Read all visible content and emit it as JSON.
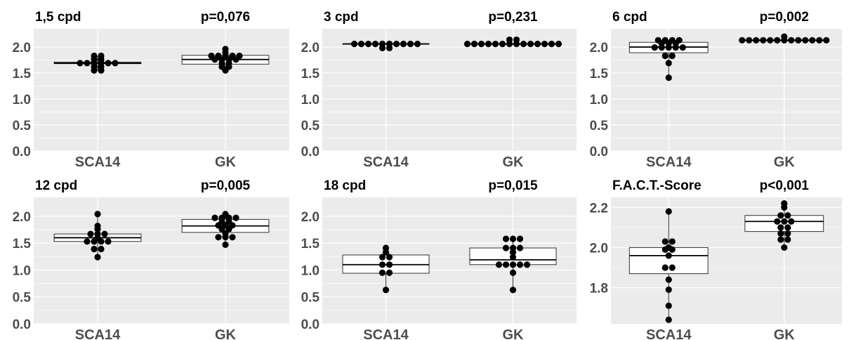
{
  "colors": {
    "panel_bg": "#ebebeb",
    "grid": "#ffffff",
    "point": "#000000",
    "box_fill": "#ffffff",
    "box_stroke": "#333333",
    "tick_text": "#4d4d4d",
    "title_text": "#000000"
  },
  "chart_data": [
    {
      "type": "boxplot",
      "title": "1,5 cpd",
      "p_value": "p=0,076",
      "categories": [
        "SCA14",
        "GK"
      ],
      "ylim": [
        0,
        2.35
      ],
      "yticks": [
        0.0,
        0.5,
        1.0,
        1.5,
        2.0
      ],
      "ytick_labels": [
        "0.0",
        "0.5",
        "1.0",
        "1.5",
        "2.0"
      ],
      "series": [
        {
          "category": "SCA14",
          "box": {
            "q1": 1.68,
            "median": 1.69,
            "q3": 1.71,
            "whisker_low": 1.55,
            "whisker_high": 1.83
          },
          "points": [
            1.55,
            1.55,
            1.62,
            1.62,
            1.69,
            1.69,
            1.69,
            1.69,
            1.69,
            1.69,
            1.76,
            1.76,
            1.83,
            1.83
          ]
        },
        {
          "category": "GK",
          "box": {
            "q1": 1.67,
            "median": 1.76,
            "q3": 1.84,
            "whisker_low": 1.55,
            "whisker_high": 1.96
          },
          "points": [
            1.55,
            1.62,
            1.62,
            1.69,
            1.69,
            1.76,
            1.76,
            1.76,
            1.76,
            1.83,
            1.83,
            1.83,
            1.83,
            1.83,
            1.89,
            1.96
          ]
        }
      ]
    },
    {
      "type": "boxplot",
      "title": "3 cpd",
      "p_value": "p=0,231",
      "categories": [
        "SCA14",
        "GK"
      ],
      "ylim": [
        0,
        2.35
      ],
      "yticks": [
        0.0,
        0.5,
        1.0,
        1.5,
        2.0
      ],
      "ytick_labels": [
        "0.0",
        "0.5",
        "1.0",
        "1.5",
        "2.0"
      ],
      "series": [
        {
          "category": "SCA14",
          "box": {
            "q1": 2.06,
            "median": 2.06,
            "q3": 2.06,
            "whisker_low": 2.06,
            "whisker_high": 2.06
          },
          "points": [
            1.98,
            1.98,
            2.06,
            2.06,
            2.06,
            2.06,
            2.06,
            2.06,
            2.06,
            2.06,
            2.06,
            2.06
          ]
        },
        {
          "category": "GK",
          "box": {
            "q1": 2.06,
            "median": 2.06,
            "q3": 2.06,
            "whisker_low": 2.06,
            "whisker_high": 2.06
          },
          "points": [
            2.06,
            2.06,
            2.06,
            2.06,
            2.06,
            2.06,
            2.06,
            2.06,
            2.06,
            2.06,
            2.06,
            2.06,
            2.06,
            2.06,
            2.14,
            2.14
          ]
        }
      ]
    },
    {
      "type": "boxplot",
      "title": "6 cpd",
      "p_value": "p=0,002",
      "categories": [
        "SCA14",
        "GK"
      ],
      "ylim": [
        0,
        2.35
      ],
      "yticks": [
        0.0,
        0.5,
        1.0,
        1.5,
        2.0
      ],
      "ytick_labels": [
        "0.0",
        "0.5",
        "1.0",
        "1.5",
        "2.0"
      ],
      "series": [
        {
          "category": "SCA14",
          "box": {
            "q1": 1.89,
            "median": 2.0,
            "q3": 2.09,
            "whisker_low": 1.41,
            "whisker_high": 2.13
          },
          "points": [
            1.41,
            1.69,
            1.83,
            1.83,
            1.99,
            1.99,
            1.99,
            1.99,
            1.99,
            2.07,
            2.07,
            2.07,
            2.13,
            2.13,
            2.13,
            2.13
          ]
        },
        {
          "category": "GK",
          "box": {
            "q1": 2.13,
            "median": 2.13,
            "q3": 2.13,
            "whisker_low": 2.13,
            "whisker_high": 2.13
          },
          "points": [
            2.13,
            2.13,
            2.13,
            2.13,
            2.13,
            2.13,
            2.13,
            2.13,
            2.13,
            2.13,
            2.13,
            2.13,
            2.13,
            2.2
          ]
        }
      ]
    },
    {
      "type": "boxplot",
      "title": "12 cpd",
      "p_value": "p=0,005",
      "categories": [
        "SCA14",
        "GK"
      ],
      "ylim": [
        0,
        2.35
      ],
      "yticks": [
        0.0,
        0.5,
        1.0,
        1.5,
        2.0
      ],
      "ytick_labels": [
        "0.0",
        "0.5",
        "1.0",
        "1.5",
        "2.0"
      ],
      "series": [
        {
          "category": "SCA14",
          "box": {
            "q1": 1.53,
            "median": 1.6,
            "q3": 1.67,
            "whisker_low": 1.24,
            "whisker_high": 2.04
          },
          "points": [
            1.24,
            1.39,
            1.39,
            1.53,
            1.53,
            1.53,
            1.53,
            1.6,
            1.67,
            1.67,
            1.67,
            1.76,
            1.82,
            2.04
          ]
        },
        {
          "category": "GK",
          "box": {
            "q1": 1.7,
            "median": 1.82,
            "q3": 1.94,
            "whisker_low": 1.47,
            "whisker_high": 2.04
          },
          "points": [
            1.47,
            1.61,
            1.61,
            1.61,
            1.68,
            1.76,
            1.76,
            1.83,
            1.83,
            1.83,
            1.9,
            1.9,
            1.97,
            1.97,
            1.97,
            1.97,
            2.04
          ]
        }
      ]
    },
    {
      "type": "boxplot",
      "title": "18 cpd",
      "p_value": "p=0,015",
      "categories": [
        "SCA14",
        "GK"
      ],
      "ylim": [
        0,
        2.35
      ],
      "yticks": [
        0.0,
        0.5,
        1.0,
        1.5,
        2.0
      ],
      "ytick_labels": [
        "0.0",
        "0.5",
        "1.0",
        "1.5",
        "2.0"
      ],
      "series": [
        {
          "category": "SCA14",
          "box": {
            "q1": 0.94,
            "median": 1.1,
            "q3": 1.28,
            "whisker_low": 0.63,
            "whisker_high": 1.41
          },
          "points": [
            0.63,
            0.95,
            0.95,
            1.1,
            1.1,
            1.24,
            1.24,
            1.33,
            1.41
          ]
        },
        {
          "category": "GK",
          "box": {
            "q1": 1.1,
            "median": 1.19,
            "q3": 1.41,
            "whisker_low": 0.63,
            "whisker_high": 1.58
          },
          "points": [
            0.63,
            0.95,
            1.1,
            1.1,
            1.1,
            1.1,
            1.1,
            1.24,
            1.33,
            1.41,
            1.41,
            1.41,
            1.58,
            1.58,
            1.58
          ]
        }
      ]
    },
    {
      "type": "boxplot",
      "title": "F.A.C.T.-Score",
      "p_value": "p<0,001",
      "categories": [
        "SCA14",
        "GK"
      ],
      "ylim": [
        1.62,
        2.25
      ],
      "yticks": [
        1.8,
        2.0,
        2.2
      ],
      "ytick_labels": [
        "1.8",
        "2.0",
        "2.2"
      ],
      "series": [
        {
          "category": "SCA14",
          "box": {
            "q1": 1.87,
            "median": 1.96,
            "q3": 2.0,
            "whisker_low": 1.64,
            "whisker_high": 2.18
          },
          "points": [
            1.64,
            1.71,
            1.79,
            1.84,
            1.9,
            1.9,
            1.96,
            1.99,
            1.99,
            2.0,
            2.03,
            2.03,
            2.18
          ]
        },
        {
          "category": "GK",
          "box": {
            "q1": 2.08,
            "median": 2.13,
            "q3": 2.16,
            "whisker_low": 2.0,
            "whisker_high": 2.22
          },
          "points": [
            2.0,
            2.04,
            2.04,
            2.07,
            2.07,
            2.1,
            2.1,
            2.13,
            2.13,
            2.13,
            2.16,
            2.16,
            2.2,
            2.22
          ]
        }
      ]
    }
  ]
}
